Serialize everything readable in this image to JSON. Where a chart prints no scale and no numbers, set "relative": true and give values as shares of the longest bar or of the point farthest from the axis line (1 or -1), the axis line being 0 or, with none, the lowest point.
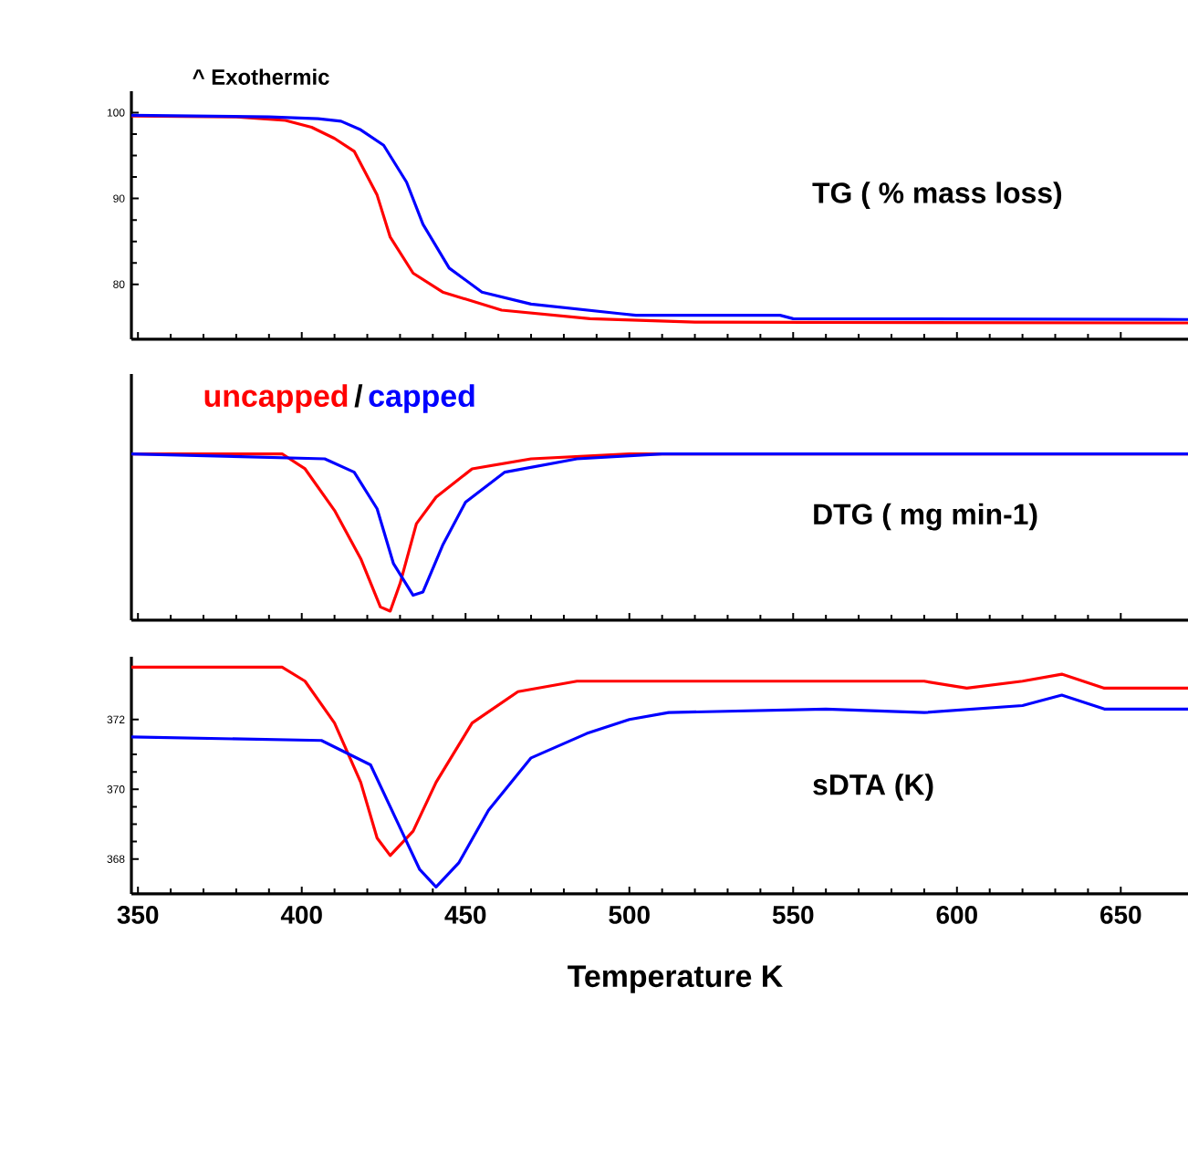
{
  "chart_data": [
    {
      "type": "line",
      "title": "TG ( % mass loss)",
      "annotations": [
        "^ Exothermic"
      ],
      "xlim": [
        348,
        680
      ],
      "xticks": [
        350,
        400,
        450,
        500,
        550,
        600,
        650
      ],
      "ylim": [
        73.6,
        102.5
      ],
      "yticks": [
        80,
        90,
        100
      ],
      "tick_labels": "y",
      "series": [
        {
          "color": "#ff0000",
          "x": [
            348,
            380,
            395,
            403,
            410,
            416,
            423,
            427,
            434,
            443,
            461,
            488,
            520,
            680
          ],
          "values": [
            99.6,
            99.5,
            99.1,
            98.3,
            97,
            95.5,
            90.4,
            85.5,
            81.3,
            79.1,
            77,
            76,
            75.6,
            75.5
          ]
        },
        {
          "color": "#0000ff",
          "x": [
            348,
            390,
            405,
            412,
            418,
            425,
            432,
            437,
            445,
            455,
            470,
            497,
            502,
            546,
            550,
            680
          ],
          "values": [
            99.7,
            99.5,
            99.3,
            99,
            98,
            96.2,
            91.9,
            87,
            81.9,
            79.1,
            77.7,
            76.6,
            76.4,
            76.4,
            76,
            75.9
          ]
        }
      ]
    },
    {
      "type": "line",
      "title": "DTG ( mg min-1)",
      "annotations": [
        "/"
      ],
      "relative": true,
      "xlim": [
        348,
        680
      ],
      "xticks": [
        350,
        400,
        450,
        500,
        550,
        600,
        650
      ],
      "tick_labels": false,
      "series": [
        {
          "name": "uncapped",
          "color": "#ff0000",
          "x": [
            348,
            394,
            401,
            410,
            418,
            424,
            427,
            430,
            435,
            441,
            452,
            470,
            500,
            680
          ],
          "values": [
            1,
            1,
            0.91,
            0.66,
            0.37,
            0.08,
            0.055,
            0.22,
            0.58,
            0.74,
            0.91,
            0.97,
            1,
            1
          ]
        },
        {
          "name": "capped",
          "color": "#0000ff",
          "x": [
            348,
            407,
            416,
            423,
            428,
            434,
            437,
            443,
            450,
            462,
            484,
            510,
            680
          ],
          "values": [
            1,
            0.97,
            0.89,
            0.67,
            0.34,
            0.15,
            0.17,
            0.45,
            0.71,
            0.89,
            0.97,
            1,
            1
          ]
        }
      ]
    },
    {
      "type": "line",
      "title": "sDTA (K)",
      "xlabel": "Temperature K",
      "xlim": [
        348,
        680
      ],
      "xticks": [
        350,
        400,
        450,
        500,
        550,
        600,
        650
      ],
      "ylim": [
        367,
        373.8
      ],
      "yticks": [
        368,
        370,
        372
      ],
      "series": [
        {
          "color": "#ff0000",
          "x": [
            348,
            394,
            401,
            410,
            418,
            423,
            427,
            434,
            441,
            452,
            466,
            484,
            590,
            603,
            620,
            632,
            645,
            680
          ],
          "values": [
            373.5,
            373.5,
            373.1,
            371.9,
            370.2,
            368.6,
            368.1,
            368.8,
            370.2,
            371.9,
            372.8,
            373.1,
            373.1,
            372.9,
            373.1,
            373.3,
            372.9,
            372.9
          ]
        },
        {
          "color": "#0000ff",
          "x": [
            348,
            406,
            421,
            430,
            436,
            441,
            448,
            457,
            470,
            487,
            500,
            512,
            560,
            590,
            620,
            632,
            645,
            680
          ],
          "values": [
            371.5,
            371.4,
            370.7,
            368.9,
            367.7,
            367.2,
            367.9,
            369.4,
            370.9,
            371.6,
            372,
            372.2,
            372.3,
            372.2,
            372.4,
            372.7,
            372.3,
            372.3
          ]
        }
      ]
    }
  ]
}
